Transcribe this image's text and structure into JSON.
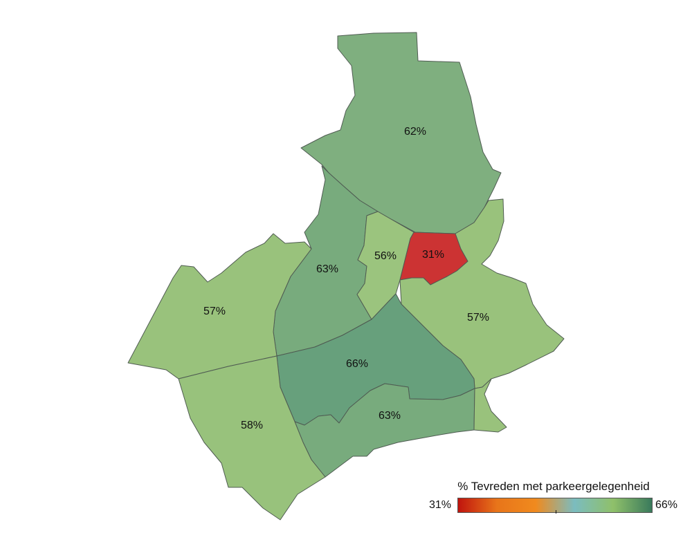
{
  "map": {
    "districts": [
      {
        "id": "north",
        "label": "62%",
        "value": 62,
        "color": "#7faf7f"
      },
      {
        "id": "center-west",
        "label": "63%",
        "value": 63,
        "color": "#78ab7d"
      },
      {
        "id": "center-narrow",
        "label": "56%",
        "value": 56,
        "color": "#9bc47e"
      },
      {
        "id": "center",
        "label": "31%",
        "value": 31,
        "color": "#cc3333"
      },
      {
        "id": "east",
        "label": "57%",
        "value": 57,
        "color": "#99c27c"
      },
      {
        "id": "west",
        "label": "57%",
        "value": 57,
        "color": "#99c27c"
      },
      {
        "id": "south-center",
        "label": "66%",
        "value": 66,
        "color": "#67a07c"
      },
      {
        "id": "south-east",
        "label": "63%",
        "value": 63,
        "color": "#78ab7d"
      },
      {
        "id": "south-west",
        "label": "58%",
        "value": 58,
        "color": "#98c27c"
      }
    ]
  },
  "legend": {
    "title": "% Tevreden met parkeergelegenheid",
    "min_label": "31%",
    "max_label": "66%",
    "gradient": [
      "#c0140e",
      "#e8751a",
      "#f08a1e",
      "#7bbcbf",
      "#8fc06a",
      "#3a7a5c"
    ]
  }
}
